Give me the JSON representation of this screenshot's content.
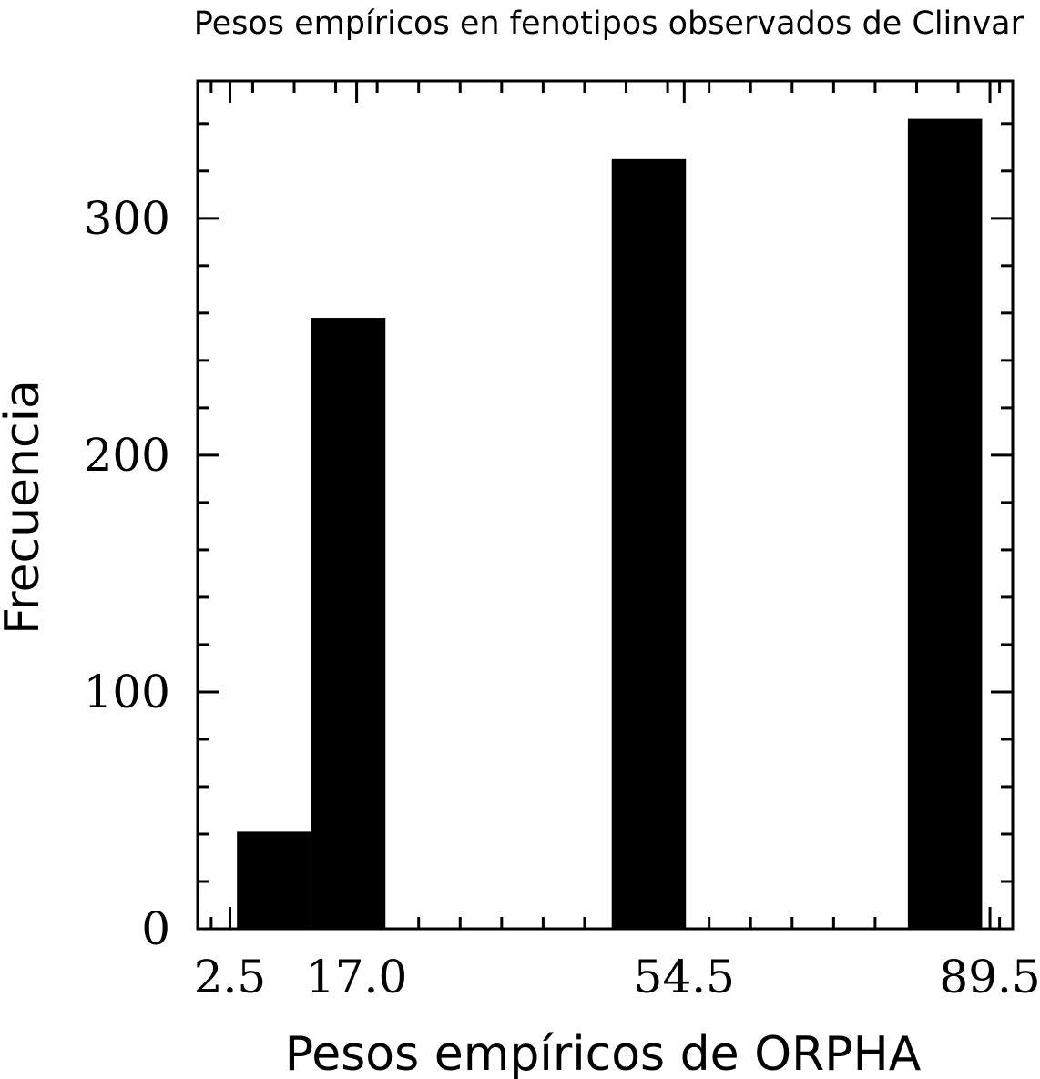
{
  "chart_data": {
    "type": "bar",
    "title": "Pesos empíricos en fenotipos observados de Clinvar",
    "xlabel": "Pesos empíricos de ORPHA",
    "ylabel": "Frecuencia",
    "x_tick_labels": [
      "2.5",
      "17.0",
      "54.5",
      "89.5"
    ],
    "x_tick_values": [
      2.5,
      17.0,
      54.5,
      89.5
    ],
    "y_ticks": [
      0,
      100,
      200,
      300
    ],
    "xlim": [
      -1.2,
      92.1
    ],
    "ylim": [
      0,
      358
    ],
    "bins": [
      {
        "x0": 3.3,
        "x1": 11.8,
        "value": 41
      },
      {
        "x0": 11.8,
        "x1": 20.3,
        "value": 258
      },
      {
        "x0": 46.2,
        "x1": 54.7,
        "value": 325
      },
      {
        "x0": 80.1,
        "x1": 88.6,
        "value": 342
      }
    ],
    "bar_color": "#000000",
    "grid": false,
    "legend": "none"
  }
}
